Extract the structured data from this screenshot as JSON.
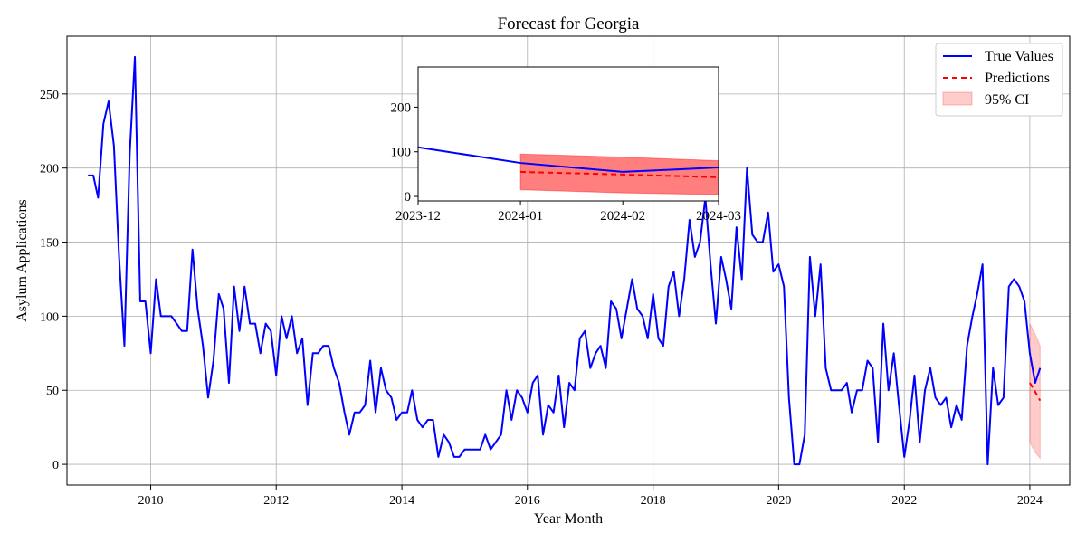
{
  "chart_data": {
    "type": "line",
    "title": "Forecast for Georgia",
    "xlabel": "Year Month",
    "ylabel": "Asylum Applications",
    "xlim": [
      "2008-09-01",
      "2024-08-20"
    ],
    "ylim": [
      -14,
      289
    ],
    "x_ticks": [
      "2010",
      "2012",
      "2014",
      "2016",
      "2018",
      "2020",
      "2022",
      "2024"
    ],
    "y_ticks": [
      0,
      50,
      100,
      150,
      200,
      250
    ],
    "grid": true,
    "legend": {
      "placement": "top-right",
      "entries": [
        "True Values",
        "Predictions",
        "95% CI"
      ]
    },
    "colors": {
      "true_values": "#0000ff",
      "predictions": "#ff0000",
      "ci_fill": "#ff0000"
    },
    "series": [
      {
        "name": "True Values",
        "x": [
          "2009-01",
          "2009-02",
          "2009-03",
          "2009-04",
          "2009-05",
          "2009-06",
          "2009-07",
          "2009-08",
          "2009-09",
          "2009-10",
          "2009-11",
          "2009-12",
          "2010-01",
          "2010-02",
          "2010-03",
          "2010-04",
          "2010-05",
          "2010-06",
          "2010-07",
          "2010-08",
          "2010-09",
          "2010-10",
          "2010-11",
          "2010-12",
          "2011-01",
          "2011-02",
          "2011-03",
          "2011-04",
          "2011-05",
          "2011-06",
          "2011-07",
          "2011-08",
          "2011-09",
          "2011-10",
          "2011-11",
          "2011-12",
          "2012-01",
          "2012-02",
          "2012-03",
          "2012-04",
          "2012-05",
          "2012-06",
          "2012-07",
          "2012-08",
          "2012-09",
          "2012-10",
          "2012-11",
          "2012-12",
          "2013-01",
          "2013-02",
          "2013-03",
          "2013-04",
          "2013-05",
          "2013-06",
          "2013-07",
          "2013-08",
          "2013-09",
          "2013-10",
          "2013-11",
          "2013-12",
          "2014-01",
          "2014-02",
          "2014-03",
          "2014-04",
          "2014-05",
          "2014-06",
          "2014-07",
          "2014-08",
          "2014-09",
          "2014-10",
          "2014-11",
          "2014-12",
          "2015-01",
          "2015-02",
          "2015-03",
          "2015-04",
          "2015-05",
          "2015-06",
          "2015-07",
          "2015-08",
          "2015-09",
          "2015-10",
          "2015-11",
          "2015-12",
          "2016-01",
          "2016-02",
          "2016-03",
          "2016-04",
          "2016-05",
          "2016-06",
          "2016-07",
          "2016-08",
          "2016-09",
          "2016-10",
          "2016-11",
          "2016-12",
          "2017-01",
          "2017-02",
          "2017-03",
          "2017-04",
          "2017-05",
          "2017-06",
          "2017-07",
          "2017-08",
          "2017-09",
          "2017-10",
          "2017-11",
          "2017-12",
          "2018-01",
          "2018-02",
          "2018-03",
          "2018-04",
          "2018-05",
          "2018-06",
          "2018-07",
          "2018-08",
          "2018-09",
          "2018-10",
          "2018-11",
          "2018-12",
          "2019-01",
          "2019-02",
          "2019-03",
          "2019-04",
          "2019-05",
          "2019-06",
          "2019-07",
          "2019-08",
          "2019-09",
          "2019-10",
          "2019-11",
          "2019-12",
          "2020-01",
          "2020-02",
          "2020-03",
          "2020-04",
          "2020-05",
          "2020-06",
          "2020-07",
          "2020-08",
          "2020-09",
          "2020-10",
          "2020-11",
          "2020-12",
          "2021-01",
          "2021-02",
          "2021-03",
          "2021-04",
          "2021-05",
          "2021-06",
          "2021-07",
          "2021-08",
          "2021-09",
          "2021-10",
          "2021-11",
          "2021-12",
          "2022-01",
          "2022-02",
          "2022-03",
          "2022-04",
          "2022-05",
          "2022-06",
          "2022-07",
          "2022-08",
          "2022-09",
          "2022-10",
          "2022-11",
          "2022-12",
          "2023-01",
          "2023-02",
          "2023-03",
          "2023-04",
          "2023-05",
          "2023-06",
          "2023-07",
          "2023-08",
          "2023-09",
          "2023-10",
          "2023-11",
          "2023-12",
          "2024-01",
          "2024-02",
          "2024-03"
        ],
        "values": [
          195,
          195,
          180,
          230,
          245,
          215,
          140,
          80,
          210,
          275,
          110,
          110,
          75,
          125,
          100,
          100,
          100,
          95,
          90,
          90,
          145,
          105,
          80,
          45,
          70,
          115,
          105,
          55,
          120,
          90,
          120,
          95,
          95,
          75,
          95,
          90,
          60,
          100,
          85,
          100,
          75,
          85,
          40,
          75,
          75,
          80,
          80,
          65,
          55,
          35,
          20,
          35,
          35,
          40,
          70,
          35,
          65,
          50,
          45,
          30,
          35,
          35,
          50,
          30,
          25,
          30,
          30,
          5,
          20,
          15,
          5,
          5,
          10,
          10,
          10,
          10,
          20,
          10,
          15,
          20,
          50,
          30,
          50,
          45,
          35,
          55,
          60,
          20,
          40,
          35,
          60,
          25,
          55,
          50,
          85,
          90,
          65,
          75,
          80,
          65,
          110,
          105,
          85,
          105,
          125,
          105,
          100,
          85,
          115,
          85,
          80,
          120,
          130,
          100,
          125,
          165,
          140,
          150,
          180,
          135,
          95,
          140,
          125,
          105,
          160,
          125,
          200,
          155,
          150,
          150,
          170,
          130,
          135,
          120,
          45,
          0,
          0,
          20,
          140,
          100,
          135,
          65,
          50,
          50,
          50,
          55,
          35,
          50,
          50,
          70,
          65,
          15,
          95,
          50,
          75,
          40,
          5,
          30,
          60,
          15,
          50,
          65,
          45,
          40,
          45,
          25,
          40,
          30,
          80,
          100,
          115,
          135,
          0,
          65,
          40,
          45,
          120,
          125,
          120,
          110,
          75,
          55,
          65
        ]
      },
      {
        "name": "Predictions",
        "x": [
          "2024-01",
          "2024-02",
          "2024-03"
        ],
        "values": [
          55,
          49,
          43
        ]
      }
    ],
    "confidence_interval": {
      "name": "95% CI",
      "x": [
        "2024-01",
        "2024-02",
        "2024-03"
      ],
      "lower": [
        15,
        8,
        4
      ],
      "upper": [
        95,
        88,
        80
      ]
    },
    "inset": {
      "xlim": [
        "2023-12-01",
        "2024-03-01"
      ],
      "ylim": [
        -10,
        290
      ],
      "x_ticks": [
        "2023-12",
        "2024-01",
        "2024-02",
        "2024-03"
      ],
      "y_ticks": [
        0,
        100,
        200
      ],
      "series": {
        "true_x": [
          "2023-12",
          "2024-01",
          "2024-02",
          "2024-03"
        ],
        "true_values": [
          110,
          75,
          55,
          65
        ],
        "pred_x": [
          "2024-01",
          "2024-02",
          "2024-03"
        ],
        "pred_values": [
          55,
          49,
          43
        ],
        "ci_lower": [
          15,
          8,
          4
        ],
        "ci_upper": [
          95,
          88,
          80
        ]
      }
    }
  }
}
